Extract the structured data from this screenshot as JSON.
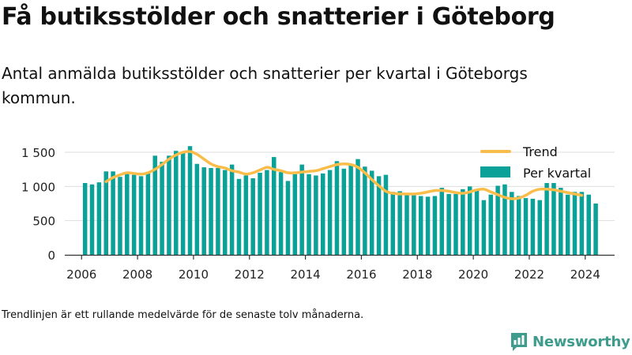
{
  "title": "Få butiksstölder och snatterier i Göteborg",
  "subtitle": "Antal anmälda butiksstölder och snatterier per kvartal i Göteborgs kommun.",
  "footnote": "Trendlinjen är ett rullande medelvärde för de senaste tolv månaderna.",
  "brand": {
    "name": "Newsworthy"
  },
  "colors": {
    "bar": "#0aa298",
    "trend": "#fbbd49",
    "axis": "#333333",
    "grid": "#dddddd",
    "brand": "#3e9c8c"
  },
  "chart_data": {
    "type": "bar",
    "title": "",
    "xlabel": "",
    "ylabel": "",
    "ylim": [
      0,
      1650
    ],
    "xlim": [
      2005.4,
      2025.05
    ],
    "yticks": [
      0,
      500,
      1000,
      1500
    ],
    "ytick_labels": [
      "0",
      "500",
      "1 000",
      "1 500"
    ],
    "xticks": [
      2006,
      2008,
      2010,
      2012,
      2014,
      2016,
      2018,
      2020,
      2022,
      2024
    ],
    "xtick_labels": [
      "2006",
      "2008",
      "2010",
      "2012",
      "2014",
      "2016",
      "2018",
      "2020",
      "2022",
      "2024"
    ],
    "grid": true,
    "legend": {
      "position": "top-right",
      "entries": [
        "Trend",
        "Per kvartal"
      ]
    },
    "x_start": "2006 Q1",
    "series": [
      {
        "name": "Per kvartal",
        "kind": "bar",
        "values": [
          1050,
          1030,
          1060,
          1220,
          1220,
          1140,
          1200,
          1170,
          1150,
          1210,
          1450,
          1360,
          1450,
          1520,
          1510,
          1590,
          1330,
          1280,
          1270,
          1270,
          1240,
          1320,
          1110,
          1160,
          1120,
          1200,
          1240,
          1430,
          1210,
          1080,
          1180,
          1320,
          1180,
          1160,
          1190,
          1240,
          1370,
          1260,
          1310,
          1400,
          1290,
          1230,
          1150,
          1170,
          920,
          930,
          880,
          870,
          860,
          850,
          860,
          980,
          890,
          890,
          960,
          1000,
          950,
          800,
          880,
          1010,
          1030,
          920,
          860,
          830,
          820,
          800,
          1050,
          1050,
          980,
          880,
          920,
          920,
          880,
          750
        ]
      },
      {
        "name": "Trend",
        "kind": "line",
        "start_index": 3,
        "values": [
          1070,
          1130,
          1170,
          1200,
          1190,
          1180,
          1200,
          1250,
          1320,
          1400,
          1460,
          1500,
          1510,
          1470,
          1400,
          1330,
          1290,
          1270,
          1230,
          1210,
          1180,
          1200,
          1240,
          1280,
          1250,
          1230,
          1200,
          1200,
          1210,
          1220,
          1230,
          1260,
          1290,
          1320,
          1330,
          1320,
          1280,
          1200,
          1100,
          1010,
          930,
          900,
          890,
          890,
          890,
          900,
          920,
          940,
          940,
          930,
          910,
          900,
          920,
          950,
          960,
          920,
          880,
          840,
          820,
          830,
          870,
          930,
          960,
          960,
          950,
          930,
          910,
          890,
          870
        ]
      }
    ]
  }
}
